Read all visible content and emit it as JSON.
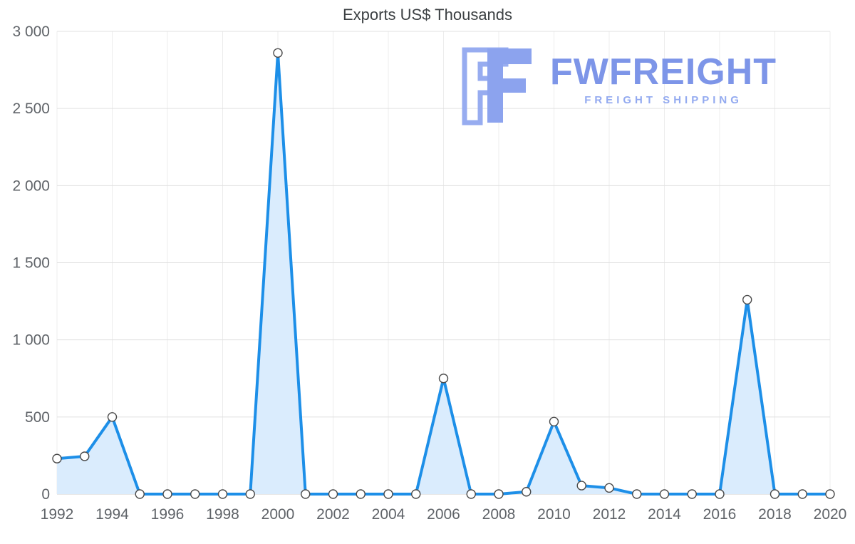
{
  "chart_data": {
    "type": "area",
    "title": "Exports US$ Thousands",
    "xlabel": "",
    "ylabel": "",
    "x": [
      1992,
      1993,
      1994,
      1995,
      1996,
      1997,
      1998,
      1999,
      2000,
      2001,
      2002,
      2003,
      2004,
      2005,
      2006,
      2007,
      2008,
      2009,
      2010,
      2011,
      2012,
      2013,
      2014,
      2015,
      2016,
      2017,
      2018,
      2019,
      2020
    ],
    "series": [
      {
        "name": "Exports US$ Thousands",
        "values": [
          230,
          245,
          500,
          0,
          0,
          0,
          0,
          0,
          2860,
          0,
          0,
          0,
          0,
          0,
          750,
          0,
          0,
          15,
          470,
          55,
          40,
          0,
          0,
          0,
          0,
          1260,
          0,
          0,
          0
        ]
      }
    ],
    "ylim": [
      0,
      3000
    ],
    "xlim": [
      1992,
      2020
    ],
    "grid": true,
    "legend": "none",
    "y_ticks": [
      {
        "value": 0,
        "label": "0"
      },
      {
        "value": 500,
        "label": "500"
      },
      {
        "value": 1000,
        "label": "1 000"
      },
      {
        "value": 1500,
        "label": "1 500"
      },
      {
        "value": 2000,
        "label": "2 000"
      },
      {
        "value": 2500,
        "label": "2 500"
      },
      {
        "value": 3000,
        "label": "3 000"
      }
    ],
    "x_ticks": [
      {
        "value": 1992,
        "label": "1992"
      },
      {
        "value": 1994,
        "label": "1994"
      },
      {
        "value": 1996,
        "label": "1996"
      },
      {
        "value": 1998,
        "label": "1998"
      },
      {
        "value": 2000,
        "label": "2000"
      },
      {
        "value": 2002,
        "label": "2002"
      },
      {
        "value": 2004,
        "label": "2004"
      },
      {
        "value": 2006,
        "label": "2006"
      },
      {
        "value": 2008,
        "label": "2008"
      },
      {
        "value": 2010,
        "label": "2010"
      },
      {
        "value": 2012,
        "label": "2012"
      },
      {
        "value": 2014,
        "label": "2014"
      },
      {
        "value": 2016,
        "label": "2016"
      },
      {
        "value": 2018,
        "label": "2018"
      },
      {
        "value": 2020,
        "label": "2020"
      }
    ],
    "colors": {
      "line": "#1d8fe8",
      "fill": "#daecfd",
      "marker_fill": "#ffffff",
      "marker_stroke": "#4a4a4a",
      "grid_h": "#e0e0e0",
      "grid_v": "#ececec",
      "baseline": "#cfcfcf",
      "axis_text": "#5f6368",
      "title_text": "#3c4043"
    }
  },
  "watermark": {
    "brand": "FWFREIGHT",
    "tagline": "FREIGHT SHIPPING",
    "brand_color": "#7d95e8",
    "tagline_color": "#93aaf0",
    "logo_color": "#8ca3ee"
  }
}
